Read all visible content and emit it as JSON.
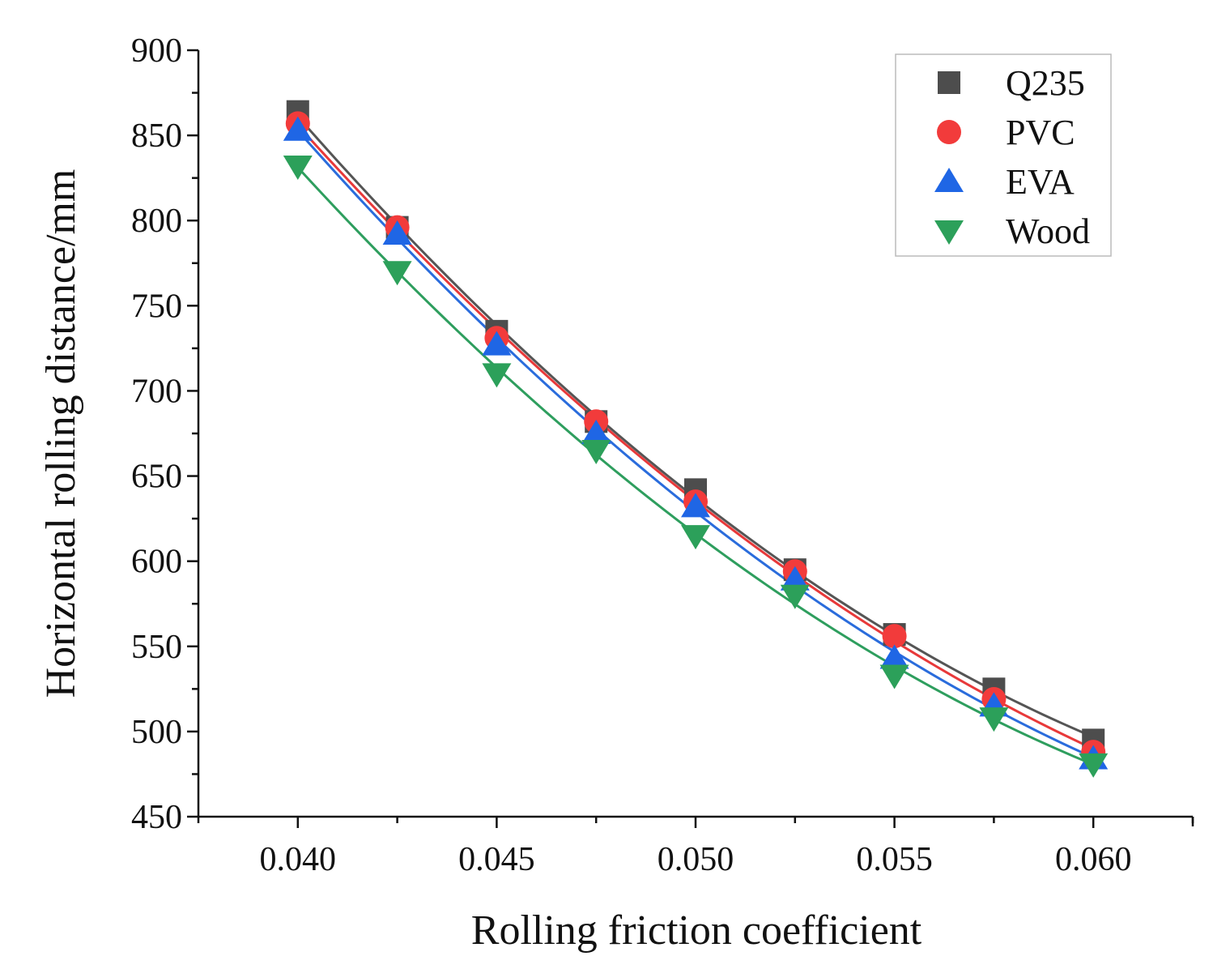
{
  "chart_data": {
    "type": "scatter",
    "title": "",
    "xlabel": "Rolling friction coefficient",
    "ylabel": "Horizontal rolling distance/mm",
    "xlim": [
      0.0375,
      0.0625
    ],
    "ylim": [
      450,
      900
    ],
    "xticks": [
      0.04,
      0.045,
      0.05,
      0.055,
      0.06
    ],
    "xtick_labels": [
      "0.040",
      "0.045",
      "0.050",
      "0.055",
      "0.060"
    ],
    "yticks": [
      450,
      500,
      550,
      600,
      650,
      700,
      750,
      800,
      850,
      900
    ],
    "ytick_labels": [
      "450",
      "500",
      "550",
      "600",
      "650",
      "700",
      "750",
      "800",
      "850",
      "900"
    ],
    "x": [
      0.04,
      0.0425,
      0.045,
      0.0475,
      0.05,
      0.0525,
      0.055,
      0.0575,
      0.06
    ],
    "series": [
      {
        "name": "Q235",
        "marker": "square",
        "color": "#4d4d4d",
        "line_color": "#555555",
        "values": [
          864,
          796,
          735,
          682,
          642,
          595,
          557,
          525,
          495
        ]
      },
      {
        "name": "PVC",
        "marker": "circle",
        "color": "#f23b3b",
        "line_color": "#e8393a",
        "values": [
          857,
          796,
          731,
          682,
          635,
          594,
          556,
          519,
          488
        ]
      },
      {
        "name": "EVA",
        "marker": "triangle-up",
        "color": "#1f66e5",
        "line_color": "#2a6cdc",
        "values": [
          853,
          792,
          727,
          675,
          632,
          589,
          543,
          515,
          484
        ]
      },
      {
        "name": "Wood",
        "marker": "triangle-down",
        "color": "#2ca05a",
        "line_color": "#2e9e5e",
        "values": [
          832,
          770,
          710,
          665,
          615,
          580,
          533,
          508,
          481
        ]
      }
    ],
    "fit_curves": "smooth fitted curve per series",
    "legend_position": "top-right",
    "grid": false
  }
}
